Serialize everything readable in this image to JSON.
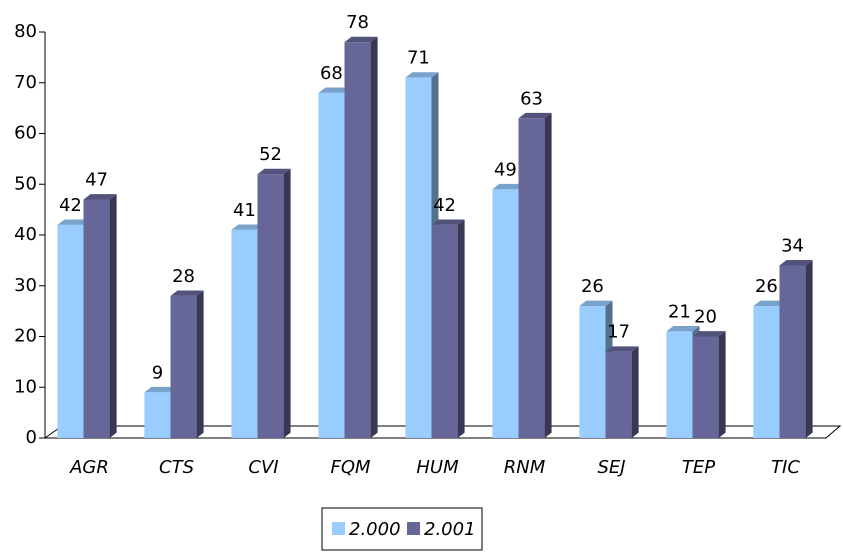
{
  "chart_data": {
    "type": "bar3d",
    "categories": [
      "AGR",
      "CTS",
      "CVI",
      "FQM",
      "HUM",
      "RNM",
      "SEJ",
      "TEP",
      "TIC"
    ],
    "series": [
      {
        "name": "2.000",
        "color": "#99ccff",
        "values": [
          42,
          9,
          41,
          68,
          71,
          49,
          26,
          21,
          26
        ]
      },
      {
        "name": "2.001",
        "color": "#666699",
        "values": [
          47,
          28,
          52,
          78,
          42,
          63,
          17,
          20,
          34
        ]
      }
    ],
    "ylim": [
      0,
      80
    ],
    "yticks": [
      0,
      10,
      20,
      30,
      40,
      50,
      60,
      70,
      80
    ],
    "legend": "bottom"
  }
}
